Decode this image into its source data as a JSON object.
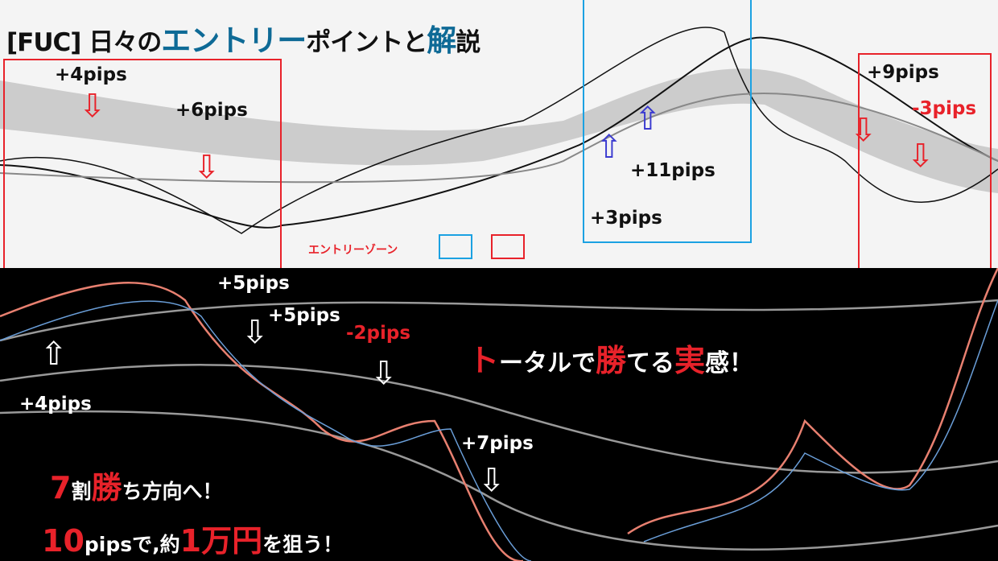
{
  "title": {
    "prefix": "[FUC] 日々の",
    "accent1": "エントリー",
    "middle": "ポイントと",
    "accent2": "解",
    "suffix": "説"
  },
  "legend": {
    "label": "エントリーゾーン",
    "colors": {
      "zone_a": "#1ba1e2",
      "zone_b": "#e8222a"
    }
  },
  "chart_data": [
    {
      "type": "candlestick",
      "title": "",
      "background": "#f4f4f4",
      "annotations": [
        {
          "label": "+4pips",
          "signal": "sell"
        },
        {
          "label": "+6pips",
          "signal": "sell"
        },
        {
          "label": "+11pips",
          "signal": "buy"
        },
        {
          "label": "+3pips",
          "signal": "buy"
        },
        {
          "label": "+9pips",
          "signal": "sell"
        },
        {
          "label": "-3pips",
          "signal": "sell"
        }
      ]
    },
    {
      "type": "candlestick",
      "title": "",
      "background": "#000000",
      "annotations": [
        {
          "label": "+4pips",
          "signal": "buy"
        },
        {
          "label": "+5pips",
          "signal": "sell"
        },
        {
          "label": "+5pips",
          "signal": "sell"
        },
        {
          "label": "-2pips",
          "signal": "sell"
        },
        {
          "label": "+7pips",
          "signal": "sell"
        }
      ]
    }
  ],
  "messages": {
    "m1": {
      "a": "ト",
      "b": "ータルで",
      "c": "勝",
      "d": "てる",
      "e": "実",
      "f": "感！"
    },
    "m2": {
      "a": "7",
      "b": "割",
      "c": "勝",
      "d": "ち方向へ！"
    },
    "m3": {
      "a": "10",
      "b": "pipsで,約",
      "c": "1万円",
      "d": "を狙う！"
    }
  }
}
